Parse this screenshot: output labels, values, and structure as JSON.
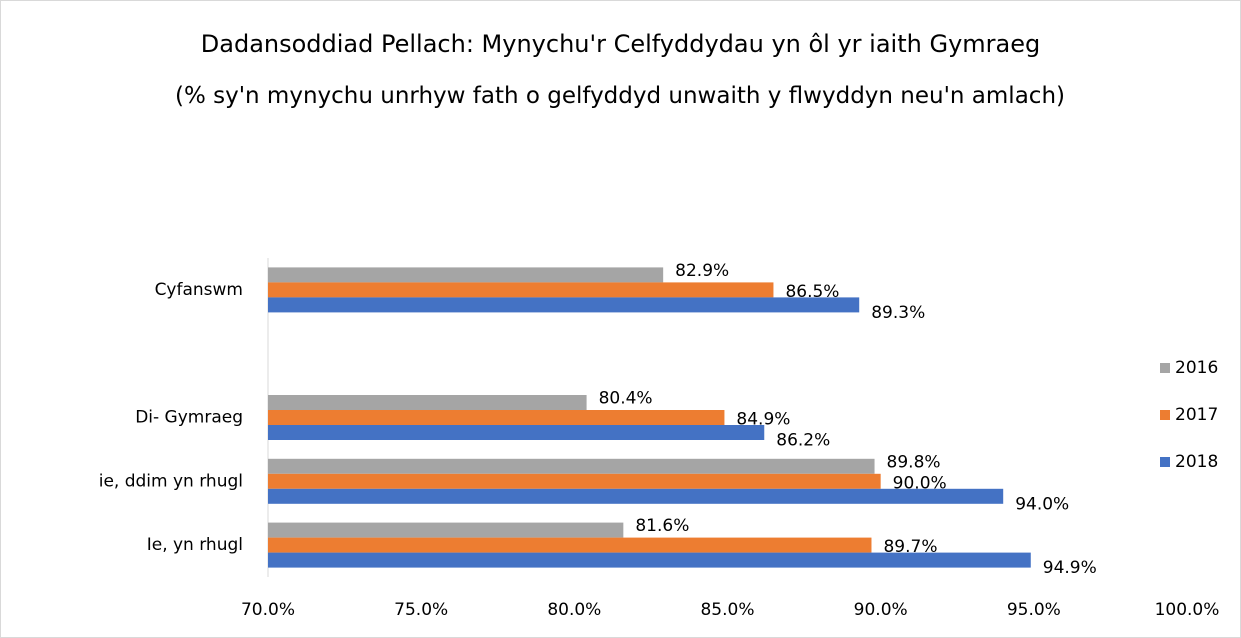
{
  "chart_data": {
    "type": "hbar",
    "title": "Dadansoddiad Pellach: Mynychu'r Celfyddydau yn ôl yr iaith Gymraeg",
    "subtitle": "(% sy'n mynychu unrhyw fath o gelfyddyd unwaith y flwyddyn neu'n amlach)",
    "categories": [
      "Cyfanswm",
      null,
      "Di- Gymraeg",
      "ie, ddim yn rhugl",
      "Ie, yn rhugl"
    ],
    "series": [
      {
        "name": "2016",
        "color": "#a5a5a5",
        "values": [
          82.9,
          null,
          80.4,
          89.8,
          81.6
        ],
        "value_labels": [
          "82.9%",
          null,
          "80.4%",
          "89.8%",
          "81.6%"
        ]
      },
      {
        "name": "2017",
        "color": "#ed7d31",
        "values": [
          86.5,
          null,
          84.9,
          90.0,
          89.7
        ],
        "value_labels": [
          "86.5%",
          null,
          "84.9%",
          "90.0%",
          "89.7%"
        ]
      },
      {
        "name": "2018",
        "color": "#4472c4",
        "values": [
          89.3,
          null,
          86.2,
          94.0,
          94.9
        ],
        "value_labels": [
          "89.3%",
          null,
          "86.2%",
          "94.0%",
          "94.9%"
        ]
      }
    ],
    "xlim": [
      70,
      100
    ],
    "xticks": [
      {
        "value": 70,
        "label": "70.0%"
      },
      {
        "value": 75,
        "label": "75.0%"
      },
      {
        "value": 80,
        "label": "80.0%"
      },
      {
        "value": 85,
        "label": "85.0%"
      },
      {
        "value": 90,
        "label": "90.0%"
      },
      {
        "value": 95,
        "label": "95.0%"
      },
      {
        "value": 100,
        "label": "100.0%"
      }
    ],
    "grid": false,
    "legend": "right"
  }
}
